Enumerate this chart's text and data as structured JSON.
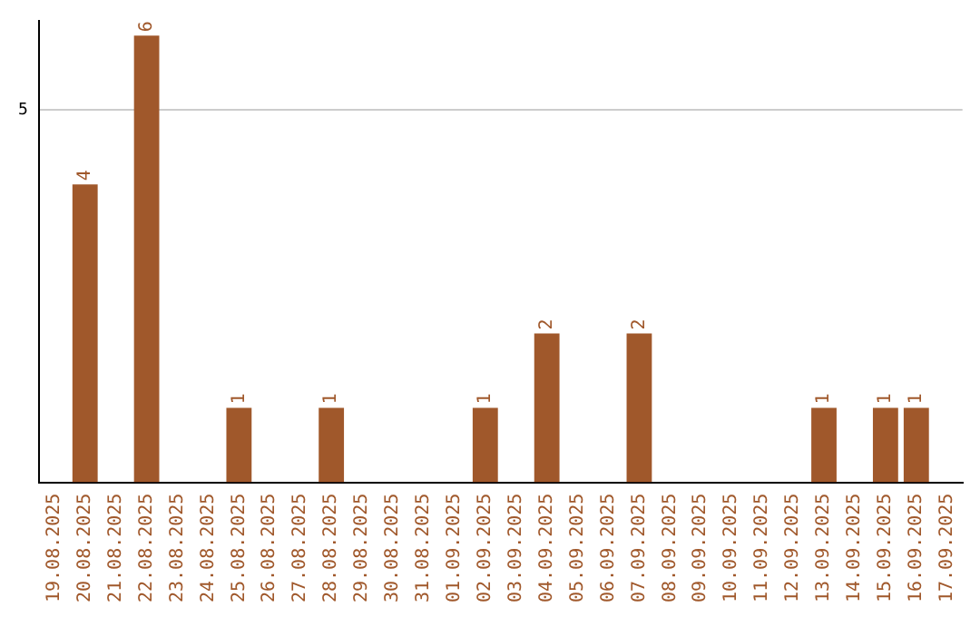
{
  "chart_data": {
    "type": "bar",
    "categories": [
      "19.08.2025",
      "20.08.2025",
      "21.08.2025",
      "22.08.2025",
      "23.08.2025",
      "24.08.2025",
      "25.08.2025",
      "26.08.2025",
      "27.08.2025",
      "28.08.2025",
      "29.08.2025",
      "30.08.2025",
      "31.08.2025",
      "01.09.2025",
      "02.09.2025",
      "03.09.2025",
      "04.09.2025",
      "05.09.2025",
      "06.09.2025",
      "07.09.2025",
      "08.09.2025",
      "09.09.2025",
      "10.09.2025",
      "11.09.2025",
      "12.09.2025",
      "13.09.2025",
      "14.09.2025",
      "15.09.2025",
      "16.09.2025",
      "17.09.2025"
    ],
    "values": [
      0,
      4,
      0,
      6,
      0,
      0,
      1,
      0,
      0,
      1,
      0,
      0,
      0,
      0,
      1,
      0,
      2,
      0,
      0,
      2,
      0,
      0,
      0,
      0,
      0,
      1,
      0,
      1,
      1,
      0
    ],
    "value_labels": [
      null,
      "4",
      null,
      "6",
      null,
      null,
      "1",
      null,
      null,
      "1",
      null,
      null,
      null,
      null,
      "1",
      null,
      "2",
      null,
      null,
      "2",
      null,
      null,
      null,
      null,
      null,
      "1",
      null,
      "1",
      "1",
      null
    ],
    "color": "#a0582b",
    "ylim": [
      0,
      6.2
    ],
    "yticks": [
      5
    ],
    "grid": "y",
    "legend": false
  }
}
